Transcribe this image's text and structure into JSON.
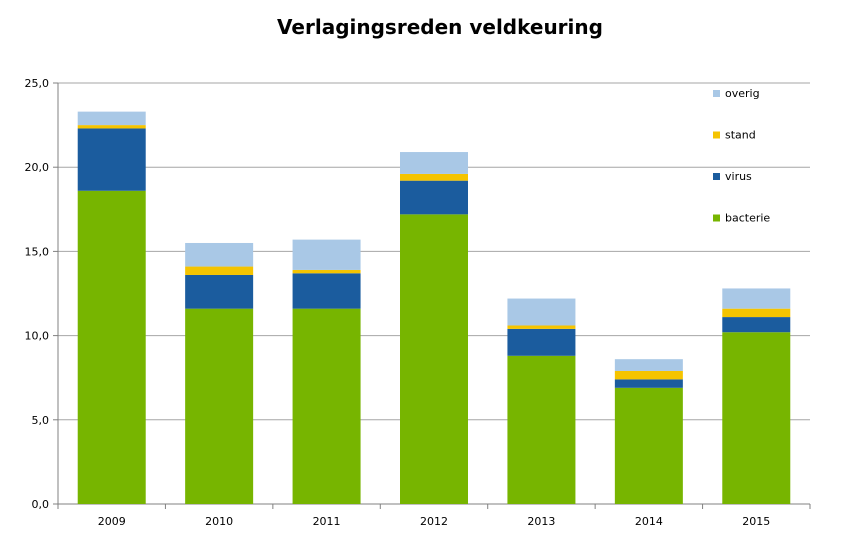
{
  "chart_data": {
    "type": "bar",
    "stacked": true,
    "title": "Verlagingsreden veldkeuring",
    "xlabel": "",
    "ylabel": "",
    "categories": [
      "2009",
      "2010",
      "2011",
      "2012",
      "2013",
      "2014",
      "2015"
    ],
    "ylim": [
      0,
      25
    ],
    "yticks": [
      "0,0",
      "5,0",
      "10,0",
      "15,0",
      "20,0",
      "25,0"
    ],
    "ytick_values": [
      0,
      5,
      10,
      15,
      20,
      25
    ],
    "grid": true,
    "legend_position": "top-right",
    "series": [
      {
        "name": "bacterie",
        "color": "#77b500",
        "values": [
          18.6,
          11.6,
          11.6,
          17.2,
          8.8,
          6.9,
          10.2
        ]
      },
      {
        "name": "virus",
        "color": "#1b5c9e",
        "values": [
          3.7,
          2.0,
          2.1,
          2.0,
          1.6,
          0.5,
          0.9
        ]
      },
      {
        "name": "stand",
        "color": "#f5c400",
        "values": [
          0.2,
          0.5,
          0.2,
          0.4,
          0.2,
          0.5,
          0.5
        ]
      },
      {
        "name": "overig",
        "color": "#a9c8e6",
        "values": [
          0.8,
          1.4,
          1.8,
          1.3,
          1.6,
          0.7,
          1.2
        ]
      }
    ]
  }
}
